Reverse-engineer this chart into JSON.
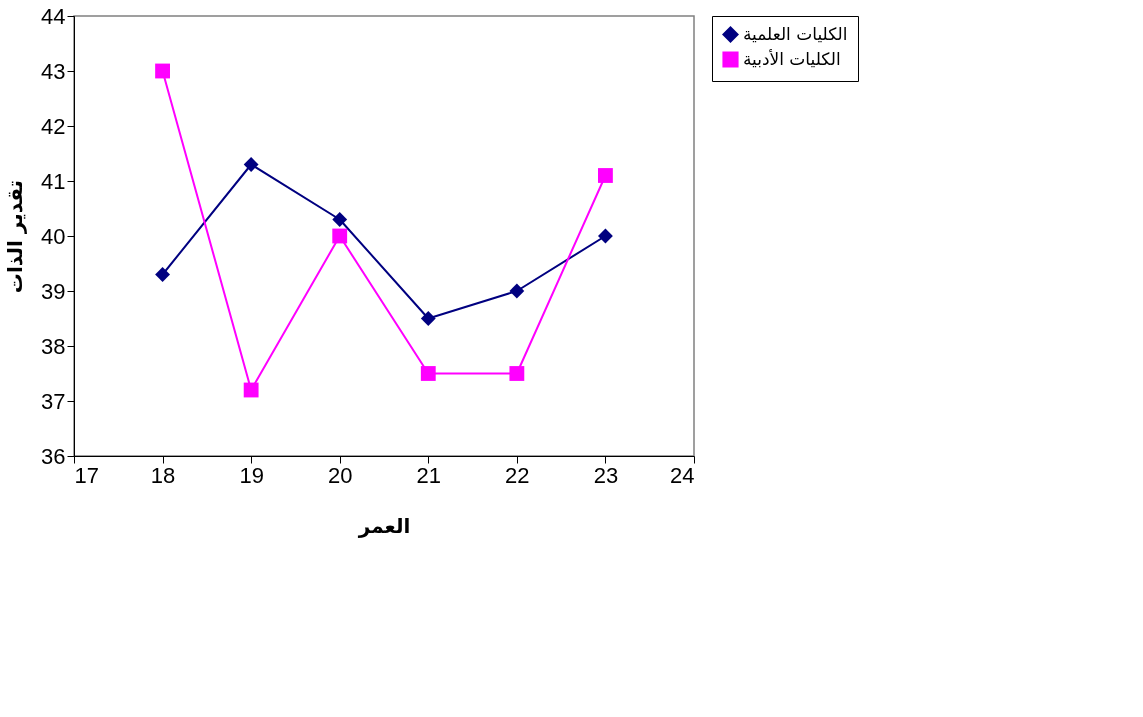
{
  "chart_data": {
    "type": "line",
    "xlabel": "العمر",
    "ylabel": "تقدير الذات",
    "x": [
      18,
      19,
      20,
      21,
      22,
      23
    ],
    "series": [
      {
        "name": "الكليات العلمية",
        "color": "#000080",
        "marker": "diamond",
        "values": [
          39.3,
          41.3,
          40.3,
          38.5,
          39.0,
          40.0
        ]
      },
      {
        "name": "الكليات الأدبية",
        "color": "#ff00ff",
        "marker": "square",
        "values": [
          43.0,
          37.2,
          40.0,
          37.5,
          37.5,
          41.1
        ]
      }
    ],
    "xlim": [
      17,
      24
    ],
    "xticks": [
      17,
      18,
      19,
      20,
      21,
      22,
      23,
      24
    ],
    "ylim": [
      36,
      44
    ],
    "yticks": [
      36,
      37,
      38,
      39,
      40,
      41,
      42,
      43,
      44
    ],
    "grid": false,
    "legend": "right",
    "line_style": "solid"
  }
}
